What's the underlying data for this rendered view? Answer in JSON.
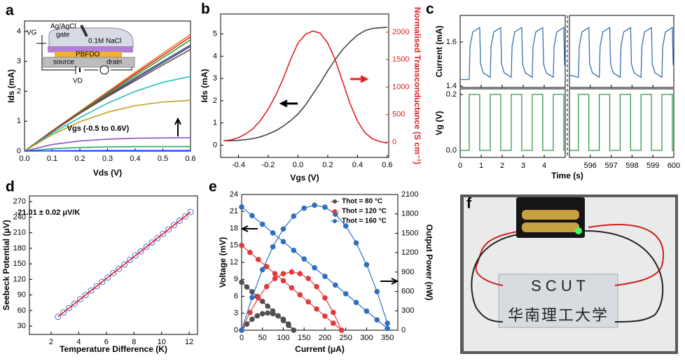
{
  "chart_data": [
    {
      "type": "line",
      "label": "a",
      "xlabel": "Vds (V)",
      "ylabel": "Ids (mA)",
      "annotation": "Vgs (-0.5 to 0.6V)",
      "inset": [
        "VG",
        "Ag/AgCl",
        "gate",
        "0.1M NaCl",
        "PBFDO",
        "source",
        "drain",
        "VD"
      ],
      "x": [
        0,
        0.1,
        0.2,
        0.3,
        0.4,
        0.5,
        0.6
      ],
      "xlim": [
        0,
        0.6
      ],
      "xticks": [
        {
          "value": 0,
          "label": "0.0"
        },
        0.1,
        0.2,
        0.3,
        0.4,
        0.5,
        0.6
      ],
      "ylim": [
        0,
        4.35
      ],
      "yticks": [
        0,
        1,
        2,
        3,
        4
      ],
      "series": [
        {
          "color": "#f07820",
          "values": [
            0,
            0.68,
            1.33,
            1.98,
            2.63,
            3.27,
            3.9
          ]
        },
        {
          "color": "#e02828",
          "values": [
            0,
            0.67,
            1.31,
            1.95,
            2.58,
            3.2,
            3.82
          ]
        },
        {
          "color": "#2ca02c",
          "values": [
            0,
            0.66,
            1.3,
            1.92,
            2.52,
            3.12,
            3.72
          ]
        },
        {
          "color": "#3050c0",
          "values": [
            0,
            0.65,
            1.27,
            1.85,
            2.4,
            2.95,
            3.5
          ]
        },
        {
          "color": "#555555",
          "values": [
            0,
            0.66,
            1.28,
            1.88,
            2.45,
            3.0,
            3.55
          ]
        },
        {
          "color": "#7a4a3a",
          "values": [
            0,
            0.65,
            1.26,
            1.82,
            2.35,
            2.88,
            3.4
          ]
        },
        {
          "color": "#20c0c0",
          "values": [
            0,
            0.6,
            1.12,
            1.6,
            2.0,
            2.3,
            2.5
          ]
        },
        {
          "color": "#c0a020",
          "values": [
            0,
            0.55,
            0.98,
            1.3,
            1.52,
            1.64,
            1.7
          ]
        },
        {
          "color": "#9050c0",
          "values": [
            0,
            0.22,
            0.34,
            0.4,
            0.43,
            0.44,
            0.45
          ]
        },
        {
          "color": "#20a090",
          "values": [
            0,
            0.08,
            0.12,
            0.14,
            0.15,
            0.15,
            0.15
          ]
        },
        {
          "color": "#2040ff",
          "values": [
            0,
            0.01,
            0.015,
            0.02,
            0.02,
            0.02,
            0.02
          ]
        }
      ]
    },
    {
      "type": "line",
      "label": "b",
      "xlabel": "Vgs (V)",
      "ylabel": "Ids (mA)",
      "y2label": "Normalised Transconductance (S cm⁻¹)",
      "y2color": "#e02020",
      "x": [
        -0.5,
        -0.45,
        -0.4,
        -0.35,
        -0.3,
        -0.25,
        -0.2,
        -0.15,
        -0.1,
        -0.05,
        0,
        0.05,
        0.1,
        0.15,
        0.2,
        0.25,
        0.3,
        0.35,
        0.4,
        0.45,
        0.5,
        0.55,
        0.6
      ],
      "xlim": [
        -0.52,
        0.61
      ],
      "xticks": [
        -0.4,
        -0.2,
        {
          "value": 0,
          "label": "0.0"
        },
        0.2,
        0.4,
        0.6
      ],
      "ylim": [
        -0.55,
        5.9
      ],
      "yticks": [
        0,
        1,
        2,
        3,
        4,
        5
      ],
      "y2lim": [
        -280,
        2330
      ],
      "y2ticks": [
        0,
        500,
        1000,
        1500,
        2000
      ],
      "series": [
        {
          "color": "#444444",
          "values": [
            0.2,
            0.2,
            0.22,
            0.25,
            0.3,
            0.38,
            0.5,
            0.65,
            0.85,
            1.1,
            1.4,
            1.8,
            2.3,
            2.8,
            3.35,
            3.85,
            4.3,
            4.65,
            4.95,
            5.15,
            5.25,
            5.28,
            5.3
          ]
        },
        {
          "color": "#e02020",
          "axis": "y2",
          "values": [
            20,
            40,
            80,
            150,
            250,
            400,
            600,
            850,
            1150,
            1500,
            1800,
            1960,
            2020,
            1980,
            1800,
            1500,
            1100,
            700,
            380,
            170,
            60,
            10,
            -20
          ]
        }
      ]
    },
    {
      "type": "line",
      "label": "c",
      "xlabel": "Time (s)",
      "segments": [
        {
          "xlim": [
            0,
            5
          ],
          "xticks": [
            0,
            1,
            2,
            3,
            4
          ]
        },
        {
          "xlim": [
            595,
            600
          ],
          "xticks": [
            596,
            597,
            598,
            599,
            600
          ]
        }
      ],
      "plots": [
        {
          "ylabel": "Current (mA)",
          "color": "#3a6fb0",
          "ylim": [
            1.394,
            1.72
          ],
          "yticks": [
            1.4,
            1.6
          ],
          "series": [
            {
              "x": [
                0,
                0.43,
                0.47,
                0.6,
                0.93,
                0.97,
                1.1,
                1.43,
                1.47,
                1.6,
                1.93,
                1.97,
                2.1,
                2.43,
                2.47,
                2.6,
                2.93,
                2.97,
                3.1,
                3.43,
                3.47,
                3.6,
                3.93,
                3.97,
                4.1,
                4.43,
                4.47,
                4.6,
                4.93,
                4.97,
                5
              ],
              "values": [
                1.43,
                1.43,
                1.58,
                1.645,
                1.665,
                1.5,
                1.46,
                1.44,
                1.58,
                1.645,
                1.665,
                1.5,
                1.46,
                1.44,
                1.58,
                1.645,
                1.665,
                1.5,
                1.46,
                1.44,
                1.58,
                1.645,
                1.665,
                1.5,
                1.46,
                1.44,
                1.58,
                1.645,
                1.665,
                1.5,
                1.48
              ]
            },
            {
              "x": [
                595,
                595.43,
                595.47,
                595.6,
                595.93,
                595.97,
                596.1,
                596.43,
                596.47,
                596.6,
                596.93,
                596.97,
                597.1,
                597.43,
                597.47,
                597.6,
                597.93,
                597.97,
                598.1,
                598.43,
                598.47,
                598.6,
                598.93,
                598.97,
                599.1,
                599.43,
                599.47,
                599.6,
                599.93,
                599.97,
                600
              ],
              "values": [
                1.45,
                1.44,
                1.58,
                1.645,
                1.665,
                1.5,
                1.46,
                1.44,
                1.58,
                1.645,
                1.665,
                1.5,
                1.46,
                1.44,
                1.58,
                1.645,
                1.665,
                1.5,
                1.46,
                1.44,
                1.58,
                1.645,
                1.665,
                1.5,
                1.46,
                1.44,
                1.58,
                1.645,
                1.665,
                1.5,
                1.48
              ]
            }
          ]
        },
        {
          "ylabel": "Vg (V)",
          "color": "#2e9a4a",
          "ylim": [
            -0.025,
            0.22
          ],
          "yticks": [
            {
              "value": 0,
              "label": "0.0"
            },
            0.2
          ],
          "series": [
            {
              "x": [
                0,
                0.43,
                0.43,
                0.93,
                0.93,
                1.43,
                1.43,
                1.93,
                1.93,
                2.43,
                2.43,
                2.93,
                2.93,
                3.43,
                3.43,
                3.93,
                3.93,
                4.43,
                4.43,
                4.93,
                4.93,
                5
              ],
              "values": [
                0,
                0,
                0.2,
                0.2,
                0,
                0,
                0.2,
                0.2,
                0,
                0,
                0.2,
                0.2,
                0,
                0,
                0.2,
                0.2,
                0,
                0,
                0.2,
                0.2,
                0,
                0
              ]
            },
            {
              "x": [
                595,
                595.43,
                595.43,
                595.93,
                595.93,
                596.43,
                596.43,
                596.93,
                596.93,
                597.43,
                597.43,
                597.93,
                597.93,
                598.43,
                598.43,
                598.93,
                598.93,
                599.43,
                599.43,
                599.93,
                599.93,
                600
              ],
              "values": [
                0,
                0,
                0.2,
                0.2,
                0,
                0,
                0.2,
                0.2,
                0,
                0,
                0.2,
                0.2,
                0,
                0,
                0.2,
                0.2,
                0,
                0,
                0.2,
                0.2,
                0,
                0
              ]
            }
          ]
        }
      ]
    },
    {
      "type": "scatter",
      "label": "d",
      "xlabel": "Temperature Difference (K)",
      "ylabel": "Seebeck Potential (μV)",
      "annotation": "-21.01 ± 0.02 μV/K",
      "xlim": [
        0.43,
        12.6
      ],
      "xticks": [
        2,
        4,
        6,
        8,
        10,
        12
      ],
      "ylim": [
        14,
        281
      ],
      "yticks": [
        30,
        60,
        90,
        120,
        150,
        180,
        210,
        240,
        270
      ],
      "series": [
        {
          "color": "#4a70d0",
          "marker": "open",
          "line": false,
          "x": [
            2.5,
            2.9,
            3.3,
            3.7,
            4.1,
            4.5,
            4.9,
            5.3,
            5.7,
            6.1,
            6.5,
            6.9,
            7.3,
            7.7,
            8.1,
            8.5,
            8.9,
            9.3,
            9.7,
            10.1,
            10.5,
            10.9,
            11.3,
            11.7,
            12.1
          ],
          "values": [
            48.0,
            56.4,
            64.8,
            73.2,
            81.7,
            90.1,
            98.5,
            106.9,
            115.3,
            123.7,
            132.2,
            140.6,
            149.0,
            157.4,
            165.8,
            174.2,
            182.7,
            191.1,
            199.5,
            207.9,
            216.3,
            224.7,
            233.2,
            241.6,
            250.0
          ]
        },
        {
          "color": "#e02020",
          "x": [
            2.5,
            12.1
          ],
          "values": [
            48,
            250
          ]
        }
      ]
    },
    {
      "type": "line",
      "label": "e",
      "xlabel": "Current (μA)",
      "ylabel": "Voltage (mV)",
      "y2label": "Output Power (nW)",
      "legend": "upper right",
      "xlim": [
        0,
        375
      ],
      "xticks": [
        0,
        50,
        100,
        150,
        200,
        250,
        300,
        350
      ],
      "ylim": [
        0,
        24
      ],
      "yticks": [
        0,
        3,
        6,
        9,
        12,
        15,
        18,
        21,
        24
      ],
      "y2lim": [
        0,
        2100
      ],
      "y2ticks": [
        0,
        300,
        600,
        900,
        1200,
        1500,
        1800,
        2100
      ],
      "series": [
        {
          "name": "Thot = 80 °C",
          "color": "#505050",
          "marker": "filled",
          "x": [
            0,
            12.5,
            25,
            37.5,
            50,
            62.5,
            75,
            87.5,
            100,
            112.5,
            125
          ],
          "values": [
            8.5,
            7.65,
            6.8,
            5.95,
            5.1,
            4.25,
            3.4,
            2.55,
            1.7,
            0.85,
            0
          ]
        },
        {
          "name": "Thot = 120 °C",
          "color": "#e03a3a",
          "marker": "filled",
          "x": [
            0,
            20,
            40,
            60,
            80,
            100,
            120,
            140,
            160,
            180,
            200,
            220,
            240
          ],
          "values": [
            15,
            13.75,
            12.5,
            11.25,
            10,
            8.75,
            7.5,
            6.25,
            5,
            3.75,
            2.5,
            1.25,
            0
          ]
        },
        {
          "name": "Thot = 160 °C",
          "color": "#2f6fc0",
          "marker": "filled",
          "x": [
            0,
            25,
            50,
            75,
            100,
            125,
            150,
            175,
            200,
            225,
            250,
            275,
            300,
            325,
            350
          ],
          "values": [
            21.8,
            20.27,
            18.73,
            17.2,
            15.66,
            14.12,
            12.59,
            11.05,
            9.52,
            7.98,
            6.45,
            4.91,
            3.38,
            1.84,
            0.31
          ]
        },
        {
          "color": "#505050",
          "marker": "filled",
          "axis": "y2",
          "x": [
            0,
            12.5,
            25,
            37.5,
            50,
            62.5,
            75,
            87.5,
            100,
            112.5,
            125
          ],
          "values": [
            0,
            95.6,
            170,
            223,
            255,
            266,
            255,
            223,
            170,
            95.6,
            0
          ]
        },
        {
          "color": "#e03a3a",
          "marker": "filled",
          "axis": "y2",
          "x": [
            0,
            20,
            40,
            60,
            80,
            100,
            120,
            140,
            160,
            180,
            200,
            220,
            240
          ],
          "values": [
            0,
            275,
            500,
            675,
            800,
            875,
            900,
            875,
            800,
            675,
            500,
            275,
            0
          ]
        },
        {
          "color": "#2f6fc0",
          "marker": "filled",
          "axis": "y2",
          "x": [
            0,
            25,
            50,
            75,
            100,
            125,
            150,
            175,
            200,
            225,
            250,
            275,
            300,
            325,
            350
          ],
          "values": [
            0,
            507,
            937,
            1290,
            1566,
            1765,
            1888,
            1934,
            1904,
            1796,
            1613,
            1351,
            1014,
            598,
            108
          ]
        }
      ]
    }
  ],
  "photo": {
    "label": "f",
    "texts": [
      "S   C   U   T",
      "华南理工大学"
    ]
  }
}
